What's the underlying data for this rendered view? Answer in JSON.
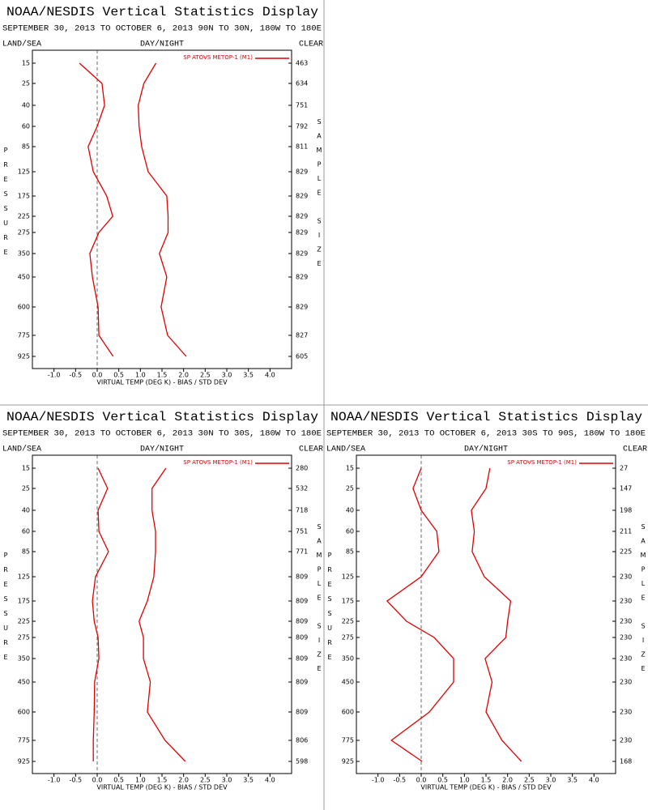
{
  "chart_data": [
    {
      "type": "line",
      "title": "NOAA/NESDIS Vertical Statistics Display",
      "subtitle": "SEPTEMBER 30, 2013 TO OCTOBER 6, 2013 90N TO 30N, 180W TO 180E",
      "land_sea": "LAND/SEA",
      "day_night": "DAY/NIGHT",
      "clear": "CLEAR",
      "ylabel": "PRESSURE",
      "y2label": "SAMPLE SIZE",
      "xlabel": "VIRTUAL TEMP (DEG K) - BIAS / STD DEV",
      "pressure_levels": [
        15,
        25,
        40,
        60,
        85,
        125,
        175,
        225,
        275,
        350,
        450,
        600,
        775,
        925
      ],
      "sample_size": [
        463,
        634,
        751,
        792,
        811,
        829,
        829,
        829,
        829,
        829,
        829,
        829,
        827,
        605
      ],
      "xlim": [
        -1.5,
        4.5
      ],
      "xticks": [
        {
          "value": -1,
          "label": "-1.0"
        },
        -0.5,
        {
          "value": 0,
          "label": "0.0"
        },
        0.5,
        {
          "value": 1,
          "label": "1.0"
        },
        1.5,
        {
          "value": 2,
          "label": "2.0"
        },
        2.5,
        {
          "value": 3,
          "label": "3.0"
        },
        3.5,
        {
          "value": 4,
          "label": "4.0"
        }
      ],
      "series": [
        {
          "name": "SP ATOVS METOP-1 (M1)",
          "color": "#e00000",
          "bias": [
            -0.41,
            0.11,
            0.17,
            0.0,
            -0.21,
            -0.09,
            0.22,
            0.36,
            0.04,
            -0.17,
            -0.11,
            0.02,
            0.04,
            0.37
          ],
          "std_dev": [
            1.36,
            1.08,
            0.95,
            0.97,
            1.03,
            1.18,
            1.61,
            1.64,
            1.64,
            1.44,
            1.61,
            1.48,
            1.63,
            2.06
          ]
        }
      ]
    },
    {
      "type": "line",
      "title": "NOAA/NESDIS Vertical Statistics Display",
      "subtitle": "SEPTEMBER 30, 2013 TO OCTOBER 6, 2013 30N TO 30S, 180W TO 180E",
      "land_sea": "LAND/SEA",
      "day_night": "DAY/NIGHT",
      "clear": "CLEAR",
      "ylabel": "PRESSURE",
      "y2label": "SAMPLE SIZE",
      "xlabel": "VIRTUAL TEMP (DEG K) - BIAS / STD DEV",
      "pressure_levels": [
        15,
        25,
        40,
        60,
        85,
        125,
        175,
        225,
        275,
        350,
        450,
        600,
        775,
        925
      ],
      "sample_size": [
        280,
        532,
        718,
        751,
        771,
        809,
        809,
        809,
        809,
        809,
        809,
        809,
        806,
        598
      ],
      "xlim": [
        -1.5,
        4.5
      ],
      "xticks": [
        {
          "value": -1,
          "label": "-1.0"
        },
        -0.5,
        {
          "value": 0,
          "label": "0.0"
        },
        0.5,
        {
          "value": 1,
          "label": "1.0"
        },
        1.5,
        {
          "value": 2,
          "label": "2.0"
        },
        2.5,
        {
          "value": 3,
          "label": "3.0"
        },
        3.5,
        {
          "value": 4,
          "label": "4.0"
        }
      ],
      "series": [
        {
          "name": "SP ATOVS METOP-1 (M1)",
          "color": "#e00000",
          "bias": [
            0.02,
            0.24,
            0.02,
            0.04,
            0.26,
            -0.04,
            -0.11,
            -0.07,
            0.02,
            0.04,
            -0.06,
            -0.07,
            -0.09,
            -0.09
          ],
          "std_dev": [
            1.59,
            1.27,
            1.27,
            1.35,
            1.35,
            1.31,
            1.16,
            0.97,
            1.07,
            1.07,
            1.23,
            1.16,
            1.57,
            2.04
          ]
        }
      ]
    },
    {
      "type": "line",
      "title": "NOAA/NESDIS Vertical Statistics Display",
      "subtitle": "SEPTEMBER 30, 2013 TO OCTOBER 6, 2013 30S TO 90S, 180W TO 180E",
      "land_sea": "LAND/SEA",
      "day_night": "DAY/NIGHT",
      "clear": "CLEAR",
      "ylabel": "PRESSURE",
      "y2label": "SAMPLE SIZE",
      "xlabel": "VIRTUAL TEMP (DEG K) - BIAS / STD DEV",
      "pressure_levels": [
        15,
        25,
        40,
        60,
        85,
        125,
        175,
        225,
        275,
        350,
        450,
        600,
        775,
        925
      ],
      "sample_size": [
        27,
        147,
        198,
        211,
        225,
        230,
        230,
        230,
        230,
        230,
        230,
        230,
        230,
        168
      ],
      "xlim": [
        -1.5,
        4.5
      ],
      "xticks": [
        {
          "value": -1,
          "label": "-1.0"
        },
        -0.5,
        {
          "value": 0,
          "label": "0.0"
        },
        0.5,
        {
          "value": 1,
          "label": "1.0"
        },
        1.5,
        {
          "value": 2,
          "label": "2.0"
        },
        2.5,
        {
          "value": 3,
          "label": "3.0"
        },
        3.5,
        {
          "value": 4,
          "label": "4.0"
        }
      ],
      "series": [
        {
          "name": "SP ATOVS METOP-1 (M1)",
          "color": "#e00000",
          "bias": [
            0.0,
            -0.19,
            0.0,
            0.36,
            0.41,
            0.0,
            -0.79,
            -0.34,
            0.3,
            0.75,
            0.75,
            0.19,
            -0.69,
            0.02
          ],
          "std_dev": [
            1.59,
            1.5,
            1.16,
            1.23,
            1.18,
            1.46,
            2.07,
            2.0,
            1.96,
            1.48,
            1.64,
            1.5,
            1.87,
            2.32
          ]
        }
      ]
    }
  ]
}
